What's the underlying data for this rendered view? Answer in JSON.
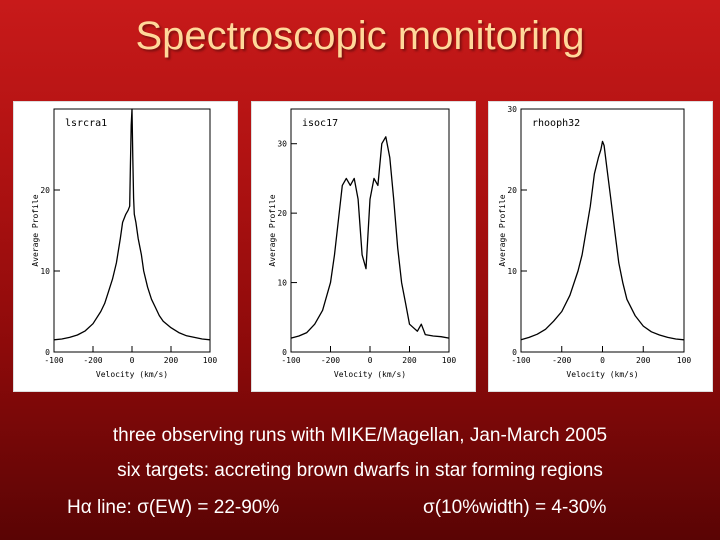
{
  "slide": {
    "title": "Spectroscopic monitoring",
    "line1": "three observing runs with MIKE/Magellan, Jan-March 2005",
    "line2": "six targets: accreting brown dwarfs in star forming regions",
    "line3a": "Hα line:  σ(EW) =  22-90%",
    "line3b": "σ(10%width) = 4-30%"
  },
  "colors": {
    "background": "#b01212",
    "title": "#ffd89a",
    "text": "#ffffff",
    "line": "#000000"
  },
  "chart_data": [
    {
      "type": "line",
      "title": "lsrcra1",
      "xlabel": "Velocity (km/s)",
      "ylabel": "Average Profile",
      "xlim": [
        -100,
        100
      ],
      "ylim": [
        0,
        30
      ],
      "xticks": [
        "-100",
        "-200",
        "0",
        "200",
        "100"
      ],
      "yticks": [
        "0",
        "10",
        "20"
      ],
      "x": [
        -100,
        -90,
        -80,
        -70,
        -60,
        -50,
        -40,
        -35,
        -30,
        -25,
        -20,
        -15,
        -12,
        -8,
        -5,
        -3,
        -2,
        -1,
        0,
        1,
        2,
        3,
        5,
        8,
        12,
        15,
        20,
        25,
        30,
        35,
        40,
        50,
        60,
        70,
        80,
        90,
        100
      ],
      "values": [
        1.5,
        1.6,
        1.8,
        2.1,
        2.6,
        3.5,
        5,
        6,
        7.5,
        9,
        11,
        14,
        16,
        17,
        17.5,
        18,
        23,
        28,
        30,
        24,
        19,
        17,
        16,
        14,
        12,
        10,
        8,
        6.5,
        5.5,
        4.5,
        3.8,
        3,
        2.4,
        2,
        1.8,
        1.6,
        1.5
      ]
    },
    {
      "type": "line",
      "title": "isoc17",
      "xlabel": "Velocity (km/s)",
      "ylabel": "Average Profile",
      "xlim": [
        -100,
        100
      ],
      "ylim": [
        0,
        35
      ],
      "xticks": [
        "-100",
        "-200",
        "0",
        "200",
        "100"
      ],
      "yticks": [
        "0",
        "10",
        "20",
        "30"
      ],
      "x": [
        -100,
        -90,
        -80,
        -70,
        -60,
        -50,
        -45,
        -40,
        -35,
        -30,
        -25,
        -20,
        -15,
        -10,
        -5,
        0,
        5,
        10,
        15,
        20,
        25,
        30,
        35,
        40,
        45,
        50,
        55,
        60,
        65,
        70,
        80,
        90,
        100
      ],
      "values": [
        2,
        2.3,
        2.8,
        4,
        6,
        10,
        14,
        19,
        24,
        25,
        24,
        25,
        22,
        14,
        12,
        22,
        25,
        24,
        30,
        31,
        28,
        22,
        15,
        10,
        7,
        4,
        3.5,
        3,
        4,
        2.5,
        2.3,
        2.2,
        2
      ]
    },
    {
      "type": "line",
      "title": "rhooph32",
      "xlabel": "Velocity (km/s)",
      "ylabel": "Average Profile",
      "xlim": [
        -100,
        100
      ],
      "ylim": [
        0,
        30
      ],
      "xticks": [
        "-100",
        "-200",
        "0",
        "200",
        "100"
      ],
      "yticks": [
        "0",
        "10",
        "20",
        "30"
      ],
      "x": [
        -100,
        -90,
        -80,
        -70,
        -60,
        -50,
        -40,
        -30,
        -25,
        -20,
        -15,
        -10,
        -5,
        -2,
        0,
        2,
        5,
        10,
        15,
        20,
        25,
        30,
        40,
        50,
        60,
        70,
        80,
        90,
        100
      ],
      "values": [
        1.5,
        1.8,
        2.2,
        2.8,
        3.8,
        5,
        7,
        10,
        12,
        15,
        18,
        22,
        24,
        25,
        26,
        25.5,
        23,
        19,
        15,
        11,
        8.5,
        6.5,
        4.5,
        3.2,
        2.5,
        2.1,
        1.8,
        1.6,
        1.5
      ]
    }
  ]
}
